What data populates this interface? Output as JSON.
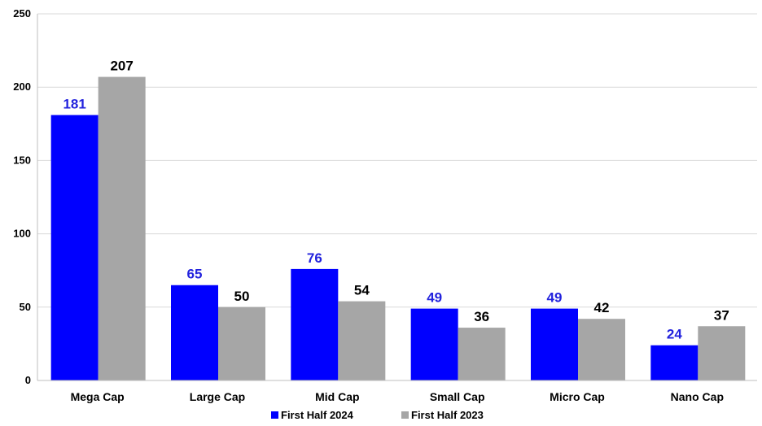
{
  "chart_data": {
    "type": "bar",
    "categories": [
      "Mega Cap",
      "Large Cap",
      "Mid Cap",
      "Small Cap",
      "Micro Cap",
      "Nano Cap"
    ],
    "series": [
      {
        "name": "First Half 2024",
        "values": [
          181,
          65,
          76,
          49,
          49,
          24
        ],
        "color": "#0000ff",
        "label_color": "#2222dd"
      },
      {
        "name": "First Half 2023",
        "values": [
          207,
          50,
          54,
          36,
          42,
          37
        ],
        "color": "#a6a6a6",
        "label_color": "#000000"
      }
    ],
    "ylim": [
      0,
      250
    ],
    "yticks": [
      "0",
      "50",
      "100",
      "150",
      "200",
      "250"
    ],
    "grid": true,
    "legend_position": "bottom-center"
  }
}
